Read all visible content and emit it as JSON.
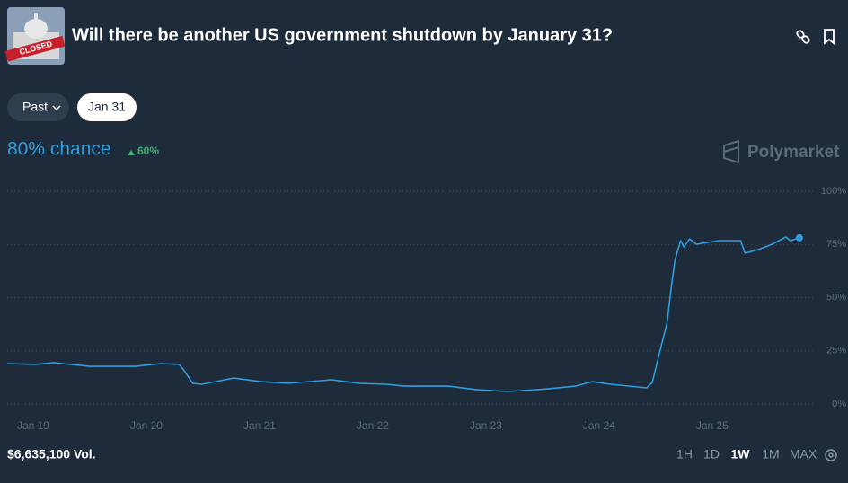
{
  "header": {
    "title": "Will there be another US government shutdown by January 31?",
    "past_button": "Past",
    "date_button": "Jan 31",
    "chance": "80% chance",
    "change": "60%",
    "brand": "Polymarket"
  },
  "footer": {
    "volume": "$6,635,100 Vol.",
    "ranges": [
      "1H",
      "1D",
      "1W",
      "1M",
      "MAX"
    ]
  },
  "chart_data": {
    "type": "line",
    "color": "#2e9ee0",
    "x": [
      18.77,
      19.02,
      19.18,
      19.5,
      19.9,
      20.13,
      20.29,
      20.33,
      20.41,
      20.49,
      20.61,
      20.77,
      21.01,
      21.25,
      21.64,
      21.88,
      22.12,
      22.28,
      22.67,
      22.91,
      23.19,
      23.47,
      23.79,
      23.94,
      24.1,
      24.42,
      24.47,
      24.54,
      24.6,
      24.64,
      24.67,
      24.72,
      24.75,
      24.8,
      24.86,
      25.06,
      25.25,
      25.29,
      25.41,
      25.53,
      25.65,
      25.69,
      25.77
    ],
    "values": [
      19,
      18.6,
      19.4,
      17.7,
      17.7,
      19,
      18.6,
      16,
      9.7,
      9.3,
      10.5,
      12.2,
      10.5,
      9.7,
      11.4,
      9.7,
      9.3,
      8.4,
      8.4,
      6.8,
      5.9,
      6.8,
      8.4,
      10.5,
      9.3,
      7.6,
      10.1,
      25.3,
      38,
      55.7,
      67.5,
      76.8,
      73.8,
      77.6,
      75.1,
      76.8,
      76.8,
      70.9,
      72.6,
      75.1,
      78.5,
      76.8,
      78.1
    ],
    "xlim": [
      18.77,
      25.89
    ],
    "xticks": [
      {
        "value": 19,
        "label": "Jan 19"
      },
      {
        "value": 20,
        "label": "Jan 20"
      },
      {
        "value": 21,
        "label": "Jan 21"
      },
      {
        "value": 22,
        "label": "Jan 22"
      },
      {
        "value": 23,
        "label": "Jan 23"
      },
      {
        "value": 24,
        "label": "Jan 24"
      },
      {
        "value": 25,
        "label": "Jan 25"
      }
    ],
    "ylim": [
      0,
      100
    ],
    "yticks": [
      {
        "value": 0,
        "label": "0%"
      },
      {
        "value": 25,
        "label": "25%"
      },
      {
        "value": 50,
        "label": "50%"
      },
      {
        "value": 75,
        "label": "75%"
      },
      {
        "value": 100,
        "label": "100%"
      }
    ],
    "grid": true
  }
}
